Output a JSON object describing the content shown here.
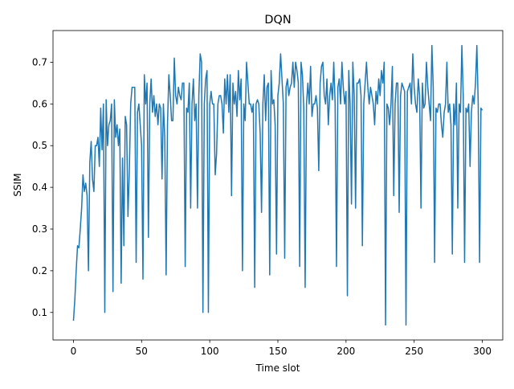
{
  "chart_data": {
    "type": "line",
    "title": "DQN",
    "x_label": "Time slot",
    "y_label": "SSIM",
    "xlim": [
      -15,
      315
    ],
    "ylim": [
      0.034,
      0.776
    ],
    "xticks": [
      0,
      50,
      100,
      150,
      200,
      250,
      300
    ],
    "yticks": [
      0.1,
      0.2,
      0.3,
      0.4,
      0.5,
      0.6,
      0.7
    ],
    "series": [
      {
        "color": "#1f77b4",
        "x": [
          0,
          1,
          2,
          3,
          4,
          5,
          6,
          7,
          8,
          9,
          10,
          11,
          12,
          13,
          14,
          15,
          16,
          17,
          18,
          19,
          20,
          21,
          22,
          23,
          24,
          25,
          26,
          27,
          28,
          29,
          30,
          31,
          32,
          33,
          34,
          35,
          36,
          37,
          38,
          39,
          40,
          41,
          42,
          43,
          44,
          45,
          46,
          47,
          48,
          49,
          50,
          51,
          52,
          53,
          54,
          55,
          56,
          57,
          58,
          59,
          60,
          61,
          62,
          63,
          64,
          65,
          66,
          67,
          68,
          69,
          70,
          71,
          72,
          73,
          74,
          75,
          76,
          77,
          78,
          79,
          80,
          81,
          82,
          83,
          84,
          85,
          86,
          87,
          88,
          89,
          90,
          91,
          92,
          93,
          94,
          95,
          96,
          97,
          98,
          99,
          100,
          101,
          102,
          103,
          104,
          105,
          106,
          107,
          108,
          109,
          110,
          111,
          112,
          113,
          114,
          115,
          116,
          117,
          118,
          119,
          120,
          121,
          122,
          123,
          124,
          125,
          126,
          127,
          128,
          129,
          130,
          131,
          132,
          133,
          134,
          135,
          136,
          137,
          138,
          139,
          140,
          141,
          142,
          143,
          144,
          145,
          146,
          147,
          148,
          149,
          150,
          151,
          152,
          153,
          154,
          155,
          156,
          157,
          158,
          159,
          160,
          161,
          162,
          163,
          164,
          165,
          166,
          167,
          168,
          169,
          170,
          171,
          172,
          173,
          174,
          175,
          176,
          177,
          178,
          179,
          180,
          181,
          182,
          183,
          184,
          185,
          186,
          187,
          188,
          189,
          190,
          191,
          192,
          193,
          194,
          195,
          196,
          197,
          198,
          199,
          200,
          201,
          202,
          203,
          204,
          205,
          206,
          207,
          208,
          209,
          210,
          211,
          212,
          213,
          214,
          215,
          216,
          217,
          218,
          219,
          220,
          221,
          222,
          223,
          224,
          225,
          226,
          227,
          228,
          229,
          230,
          231,
          232,
          233,
          234,
          235,
          236,
          237,
          238,
          239,
          240,
          241,
          242,
          243,
          244,
          245,
          246,
          247,
          248,
          249,
          250,
          251,
          252,
          253,
          254,
          255,
          256,
          257,
          258,
          259,
          260,
          261,
          262,
          263,
          264,
          265,
          266,
          267,
          268,
          269,
          270,
          271,
          272,
          273,
          274,
          275,
          276,
          277,
          278,
          279,
          280,
          281,
          282,
          283,
          284,
          285,
          286,
          287,
          288,
          289,
          290,
          291,
          292,
          293,
          294,
          295,
          296,
          297,
          298,
          299,
          300
        ],
        "values": [
          0.08,
          0.13,
          0.2,
          0.26,
          0.255,
          0.3,
          0.35,
          0.43,
          0.39,
          0.41,
          0.38,
          0.2,
          0.46,
          0.51,
          0.42,
          0.39,
          0.5,
          0.5,
          0.52,
          0.45,
          0.59,
          0.49,
          0.6,
          0.1,
          0.61,
          0.5,
          0.55,
          0.56,
          0.6,
          0.15,
          0.61,
          0.52,
          0.55,
          0.5,
          0.54,
          0.17,
          0.47,
          0.26,
          0.57,
          0.55,
          0.33,
          0.44,
          0.6,
          0.64,
          0.64,
          0.64,
          0.22,
          0.58,
          0.6,
          0.55,
          0.5,
          0.18,
          0.67,
          0.6,
          0.65,
          0.28,
          0.6,
          0.66,
          0.58,
          0.62,
          0.57,
          0.6,
          0.55,
          0.6,
          0.59,
          0.42,
          0.6,
          0.52,
          0.19,
          0.55,
          0.67,
          0.62,
          0.56,
          0.56,
          0.71,
          0.62,
          0.6,
          0.64,
          0.62,
          0.61,
          0.65,
          0.65,
          0.21,
          0.59,
          0.58,
          0.65,
          0.35,
          0.6,
          0.66,
          0.56,
          0.6,
          0.35,
          0.62,
          0.72,
          0.7,
          0.1,
          0.6,
          0.66,
          0.68,
          0.1,
          0.6,
          0.63,
          0.6,
          0.6,
          0.43,
          0.48,
          0.6,
          0.62,
          0.62,
          0.6,
          0.53,
          0.66,
          0.6,
          0.67,
          0.58,
          0.67,
          0.38,
          0.65,
          0.6,
          0.63,
          0.57,
          0.68,
          0.61,
          0.66,
          0.2,
          0.6,
          0.56,
          0.7,
          0.65,
          0.6,
          0.6,
          0.58,
          0.6,
          0.16,
          0.6,
          0.61,
          0.6,
          0.53,
          0.34,
          0.6,
          0.67,
          0.56,
          0.64,
          0.65,
          0.19,
          0.68,
          0.6,
          0.61,
          0.55,
          0.24,
          0.62,
          0.65,
          0.72,
          0.66,
          0.6,
          0.23,
          0.64,
          0.66,
          0.62,
          0.64,
          0.65,
          0.7,
          0.64,
          0.7,
          0.68,
          0.65,
          0.21,
          0.7,
          0.67,
          0.59,
          0.16,
          0.6,
          0.65,
          0.6,
          0.69,
          0.57,
          0.6,
          0.6,
          0.62,
          0.59,
          0.44,
          0.65,
          0.69,
          0.7,
          0.62,
          0.6,
          0.66,
          0.55,
          0.62,
          0.65,
          0.61,
          0.7,
          0.6,
          0.21,
          0.64,
          0.66,
          0.6,
          0.7,
          0.64,
          0.6,
          0.63,
          0.14,
          0.68,
          0.6,
          0.36,
          0.7,
          0.62,
          0.35,
          0.65,
          0.65,
          0.66,
          0.62,
          0.26,
          0.6,
          0.65,
          0.7,
          0.64,
          0.6,
          0.64,
          0.62,
          0.6,
          0.55,
          0.63,
          0.6,
          0.66,
          0.62,
          0.68,
          0.65,
          0.7,
          0.07,
          0.6,
          0.59,
          0.55,
          0.6,
          0.69,
          0.38,
          0.6,
          0.65,
          0.65,
          0.34,
          0.62,
          0.65,
          0.64,
          0.63,
          0.07,
          0.63,
          0.64,
          0.65,
          0.6,
          0.72,
          0.64,
          0.6,
          0.58,
          0.66,
          0.62,
          0.35,
          0.65,
          0.59,
          0.6,
          0.7,
          0.64,
          0.6,
          0.56,
          0.74,
          0.64,
          0.22,
          0.59,
          0.58,
          0.6,
          0.6,
          0.55,
          0.52,
          0.58,
          0.6,
          0.7,
          0.58,
          0.6,
          0.55,
          0.24,
          0.6,
          0.55,
          0.65,
          0.35,
          0.6,
          0.58,
          0.74,
          0.62,
          0.22,
          0.59,
          0.58,
          0.6,
          0.45,
          0.58,
          0.62,
          0.6,
          0.65,
          0.74,
          0.6,
          0.22,
          0.59,
          0.585
        ]
      }
    ]
  }
}
